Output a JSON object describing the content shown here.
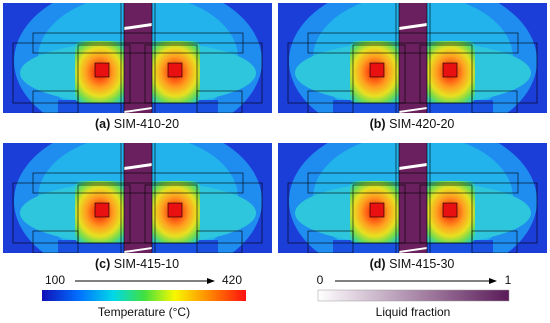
{
  "panels": [
    {
      "letter": "(a)",
      "name": "SIM-410-20"
    },
    {
      "letter": "(b)",
      "name": "SIM-420-20"
    },
    {
      "letter": "(c)",
      "name": "SIM-415-10"
    },
    {
      "letter": "(d)",
      "name": "SIM-415-30"
    }
  ],
  "temperature_scale": {
    "min": 100,
    "max": 420,
    "label": "Temperature (°C)"
  },
  "liquid_scale": {
    "min": 0,
    "max": 1,
    "label": "Liquid fraction"
  }
}
